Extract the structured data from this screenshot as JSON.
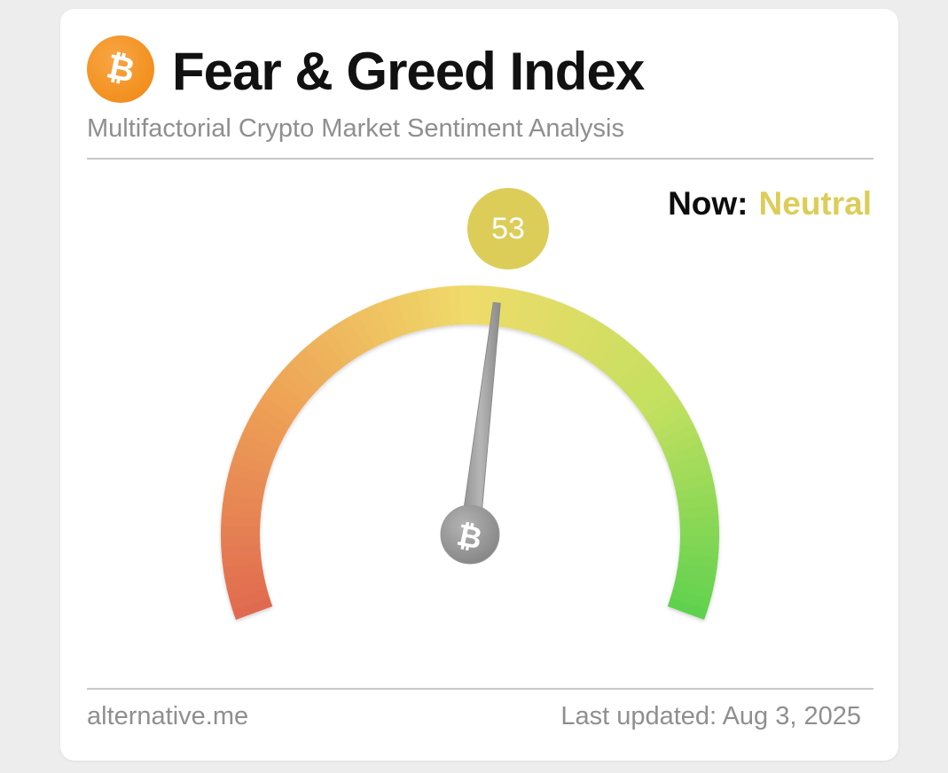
{
  "header": {
    "title": "Fear & Greed Index",
    "subtitle": "Multifactorial Crypto Market Sentiment Analysis",
    "logo_icon": "bitcoin-icon",
    "logo_symbol": "₿"
  },
  "status": {
    "now_label": "Now:",
    "classification": "Neutral",
    "classification_color": "#dccd59"
  },
  "gauge": {
    "value": 53,
    "value_label": "53",
    "min": 0,
    "max": 100,
    "hub_icon": "bitcoin-icon",
    "hub_symbol": "₿",
    "colors": {
      "extreme_fear": "#e06a50",
      "fear": "#eea356",
      "neutral": "#efdb6a",
      "greed": "#c4e060",
      "extreme_greed": "#5fd14e"
    }
  },
  "footer": {
    "source": "alternative.me",
    "last_updated": "Last updated: Aug 3, 2025"
  }
}
